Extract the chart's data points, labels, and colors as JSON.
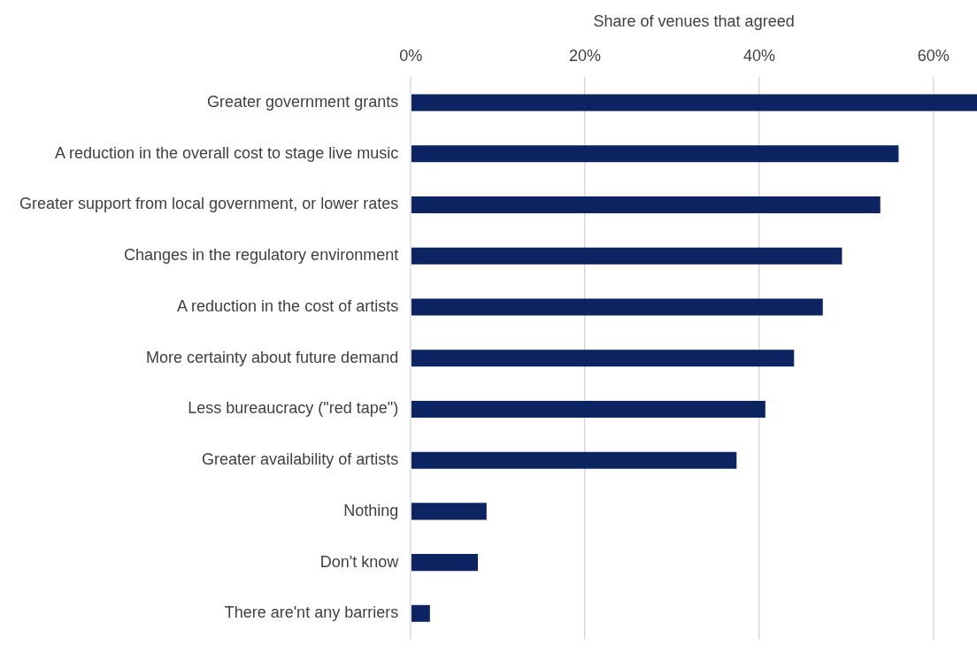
{
  "chart_data": {
    "type": "bar",
    "orientation": "horizontal",
    "xlabel": "Share of venues that agreed",
    "categories": [
      "Greater government grants",
      "A reduction in the overall cost to stage live music",
      "Greater support from local government, or lower rates",
      "Changes in the regulatory environment",
      "A reduction in the cost of artists",
      "More certainty about future demand",
      "Less bureaucracy (\"red tape\")",
      "Greater availability of artists",
      "Nothing",
      "Don't know",
      "There are'nt any barriers"
    ],
    "values": [
      65,
      56,
      53.9,
      49.5,
      47.3,
      44,
      40.7,
      37.4,
      8.7,
      7.7,
      2.2
    ],
    "color": "#0c2461",
    "xlim": [
      0,
      65
    ],
    "xticks": [
      {
        "value": 0,
        "label": "0%"
      },
      {
        "value": 20,
        "label": "20%"
      },
      {
        "value": 40,
        "label": "40%"
      },
      {
        "value": 60,
        "label": "60%"
      }
    ],
    "grid": "x",
    "legend": false
  }
}
